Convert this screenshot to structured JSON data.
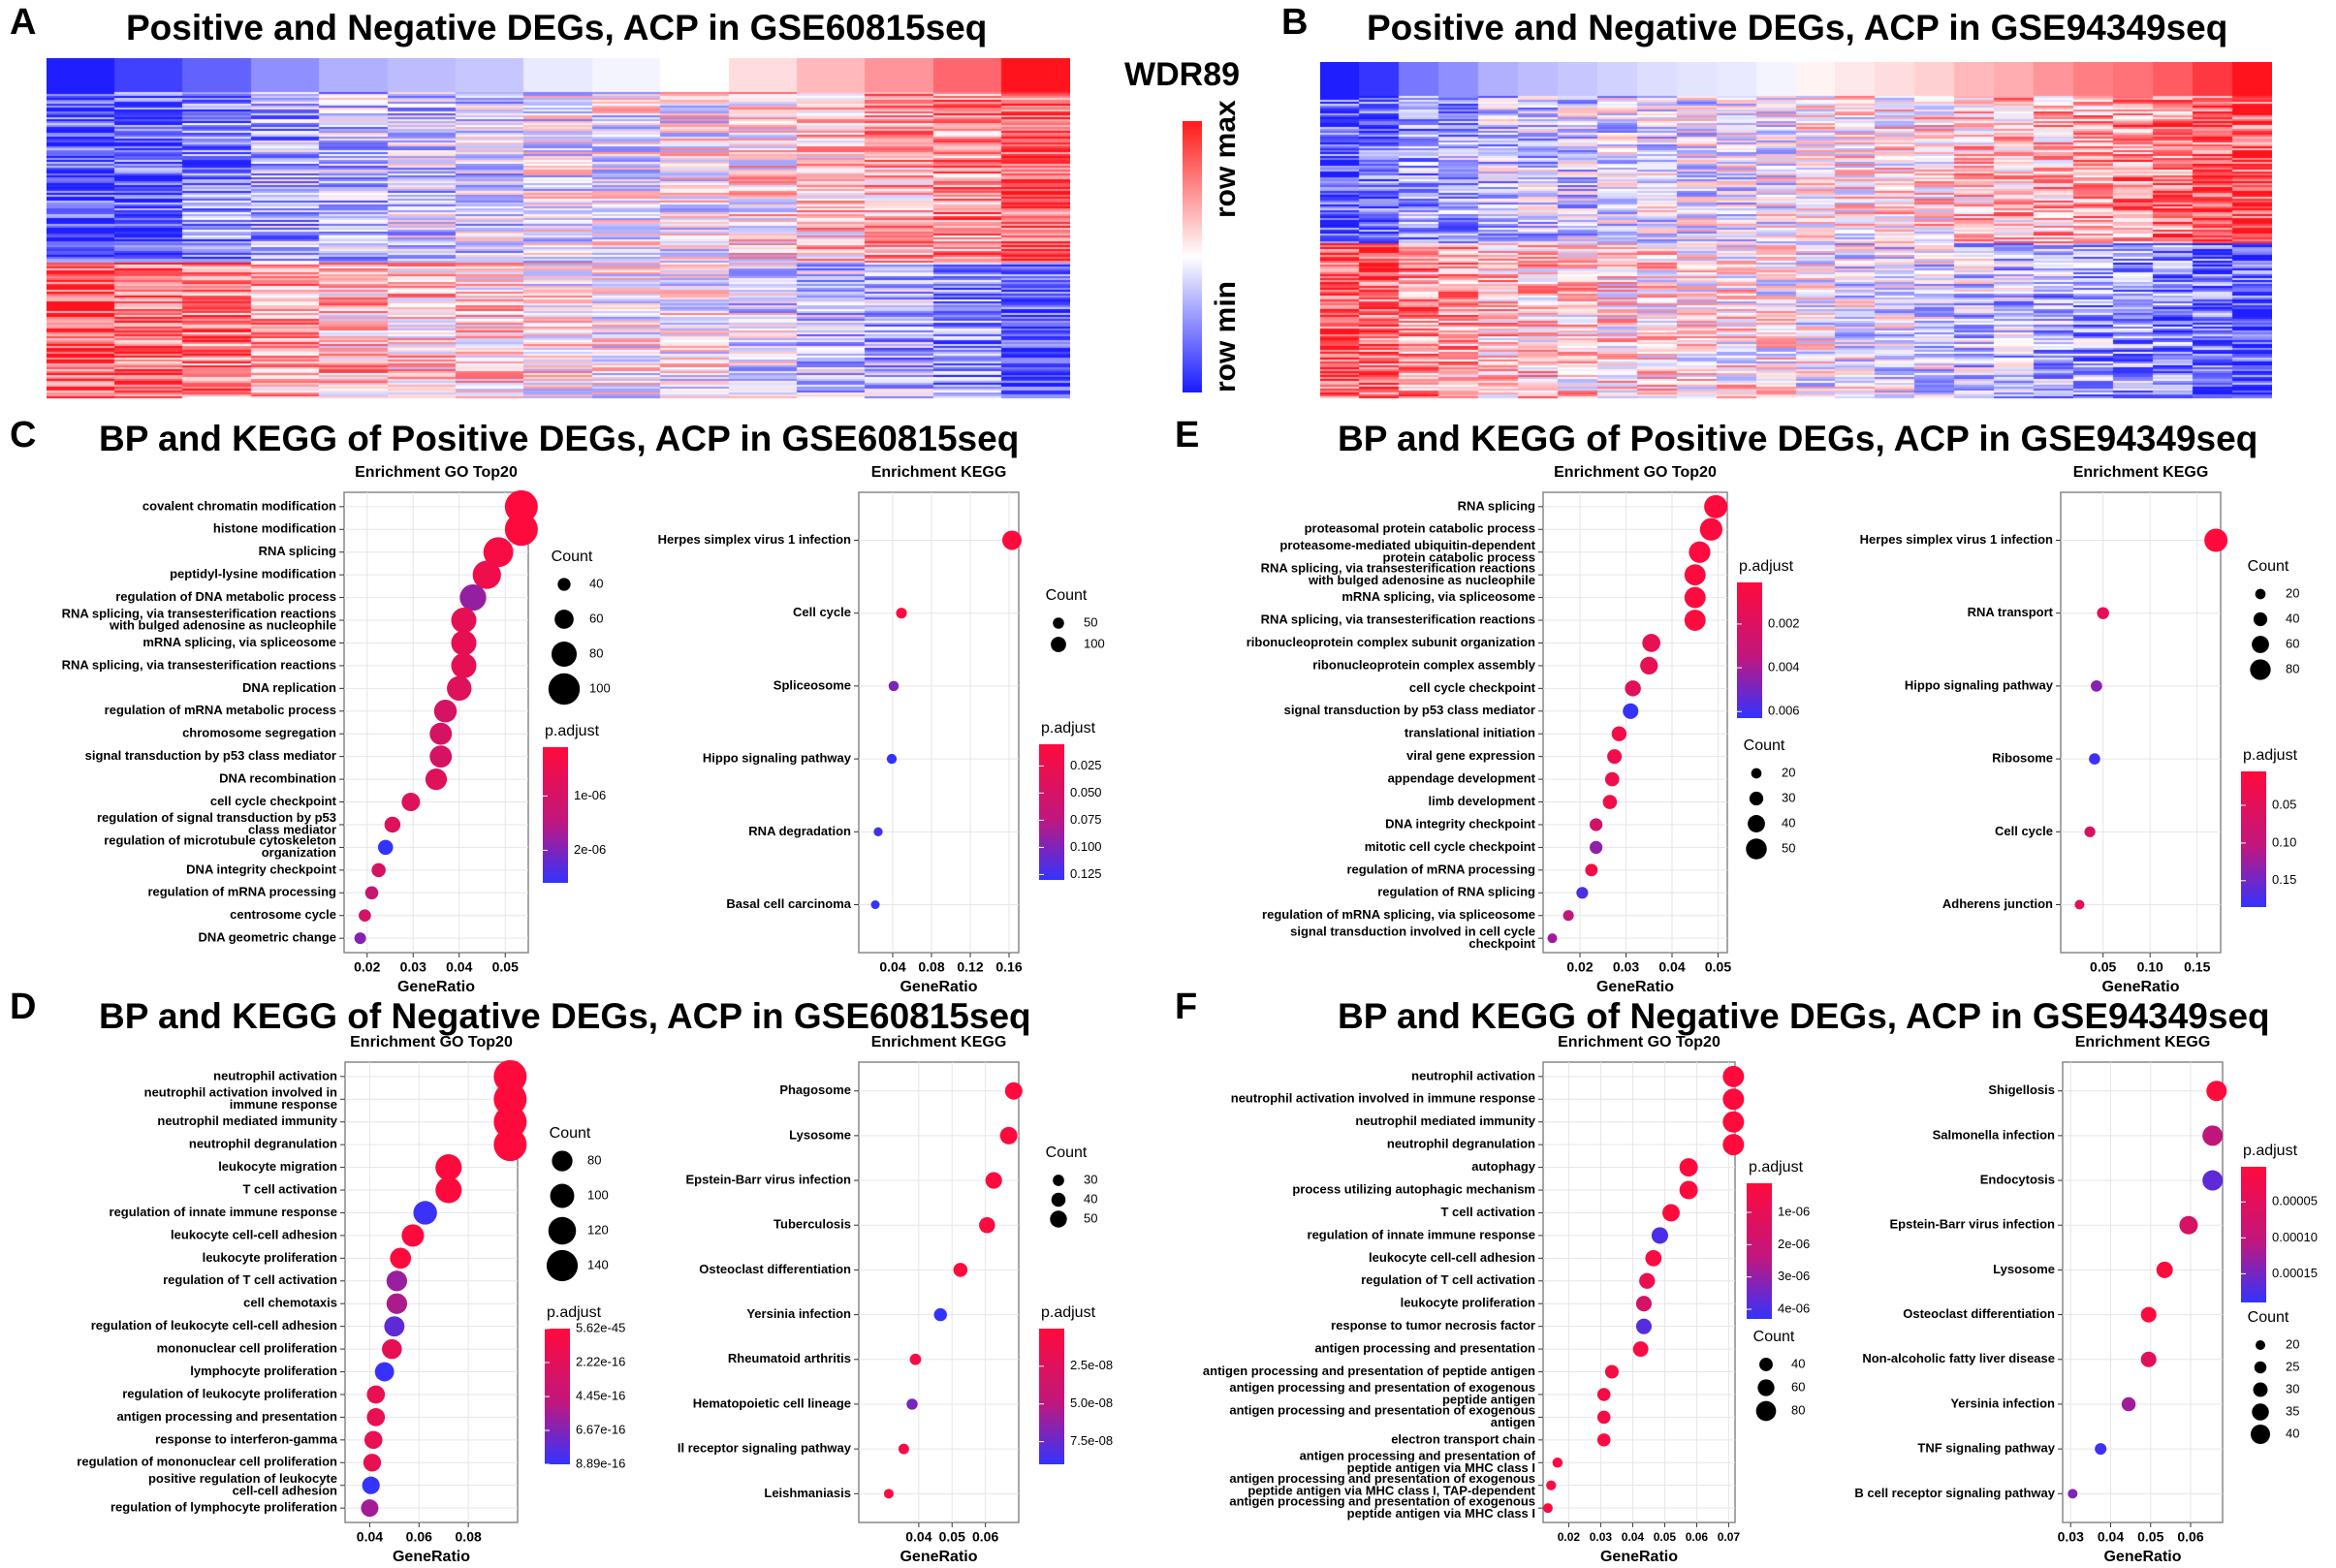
{
  "colors": {
    "low": "#2b2bff",
    "mid": "#ffffff",
    "high": "#ff0a14",
    "adj_low": "#ff0a3c",
    "adj_high": "#3333ff",
    "grid_bg": "#ffffff",
    "grid_line": "#e6e6e6",
    "frame": "#888888"
  },
  "panel_letters": [
    "A",
    "B",
    "C",
    "D",
    "E",
    "F"
  ],
  "heatmaps": [
    {
      "title": "Positive and Negative DEGs, ACP in GSE60815seq",
      "columns": 15,
      "seed": 7,
      "split": 0.56,
      "header_gradient": [
        -1,
        -0.85,
        -0.7,
        -0.5,
        -0.35,
        -0.3,
        -0.25,
        -0.1,
        -0.05,
        0.0,
        0.15,
        0.3,
        0.45,
        0.65,
        1.0
      ]
    },
    {
      "title": "Positive and Negative DEGs, ACP in GSE94349seq",
      "columns": 24,
      "seed": 19,
      "split": 0.49,
      "header_gradient": [
        -1,
        -0.9,
        -0.6,
        -0.5,
        -0.35,
        -0.3,
        -0.25,
        -0.2,
        -0.15,
        -0.12,
        -0.1,
        -0.05,
        0.05,
        0.1,
        0.15,
        0.2,
        0.3,
        0.35,
        0.45,
        0.55,
        0.6,
        0.7,
        0.85,
        1.0
      ]
    }
  ],
  "heatmap_legend": {
    "gene": "WDR89",
    "max_label": "row max",
    "min_label": "row min"
  },
  "section_titles": {
    "C": "BP and KEGG of Positive DEGs, ACP in GSE60815seq",
    "D": "BP and KEGG of Negative DEGs, ACP in GSE60815seq",
    "E": "BP and KEGG of Positive DEGs, ACP in GSE94349seq",
    "F": "BP and KEGG of Negative DEGs, ACP in GSE94349seq"
  },
  "chart_data": [
    {
      "id": "C-go",
      "type": "scatter",
      "title": "Enrichment GO Top20",
      "xlabel": "GeneRatio",
      "xlim": [
        0.015,
        0.055
      ],
      "xticks": [
        "0.02",
        "0.03",
        "0.04",
        "0.05"
      ],
      "xtick_values": [
        0.02,
        0.03,
        0.04,
        0.05
      ],
      "terms": [
        "covalent chromatin modification",
        "histone modification",
        "RNA splicing",
        "peptidyl-lysine modification",
        "regulation of DNA metabolic process",
        "RNA splicing, via transesterification reactions\nwith bulged adenosine as nucleophile",
        "mRNA splicing, via spliceosome",
        "RNA splicing, via transesterification reactions",
        "DNA replication",
        "regulation of mRNA metabolic process",
        "chromosome segregation",
        "signal transduction by p53 class mediator",
        "DNA recombination",
        "cell cycle checkpoint",
        "regulation of signal transduction by p53\nclass mediator",
        "regulation of microtubule cytoskeleton\norganization",
        "DNA integrity checkpoint",
        "regulation of mRNA processing",
        "centrosome cycle",
        "DNA geometric change"
      ],
      "gene_ratio": [
        0.0535,
        0.0535,
        0.0485,
        0.046,
        0.043,
        0.041,
        0.041,
        0.041,
        0.04,
        0.037,
        0.036,
        0.036,
        0.035,
        0.0295,
        0.0255,
        0.024,
        0.0225,
        0.021,
        0.0195,
        0.0185
      ],
      "count": [
        105,
        105,
        95,
        90,
        84,
        80,
        80,
        80,
        78,
        72,
        70,
        70,
        68,
        58,
        50,
        47,
        44,
        41,
        38,
        36
      ],
      "p_adjust": [
        1e-07,
        1e-07,
        2e-07,
        3e-07,
        1.4e-06,
        4e-07,
        4e-07,
        4e-07,
        5e-07,
        6e-07,
        6e-07,
        6e-07,
        5e-07,
        5e-07,
        5e-07,
        2.6e-06,
        6e-07,
        8e-07,
        6e-07,
        1.6e-06
      ],
      "size_legend": {
        "title": "Count",
        "labels": [
          "40",
          "60",
          "80",
          "100"
        ],
        "values": [
          40,
          60,
          80,
          100
        ]
      },
      "color_legend": {
        "title": "p.adjust",
        "labels": [
          "1e-06",
          "2e-06"
        ],
        "values": [
          1e-06,
          2e-06
        ],
        "range": [
          1e-07,
          2.6e-06
        ]
      }
    },
    {
      "id": "C-kegg",
      "type": "scatter",
      "title": "Enrichment KEGG",
      "xlabel": "GeneRatio",
      "xlim": [
        0.005,
        0.17
      ],
      "xticks": [
        "0.04",
        "0.08",
        "0.12",
        "0.16"
      ],
      "xtick_values": [
        0.04,
        0.08,
        0.12,
        0.16
      ],
      "terms": [
        "Herpes simplex virus 1 infection",
        "Cell cycle",
        "Spliceosome",
        "Hippo signaling pathway",
        "RNA degradation",
        "Basal cell carcinoma"
      ],
      "gene_ratio": [
        0.163,
        0.049,
        0.041,
        0.039,
        0.025,
        0.022
      ],
      "count": [
        150,
        45,
        38,
        36,
        23,
        20
      ],
      "p_adjust": [
        0.005,
        0.008,
        0.085,
        0.13,
        0.12,
        0.13
      ],
      "size_legend": {
        "title": "Count",
        "labels": [
          "50",
          "100"
        ],
        "values": [
          50,
          100
        ]
      },
      "color_legend": {
        "title": "p.adjust",
        "labels": [
          "0.025",
          "0.050",
          "0.075",
          "0.100",
          "0.125"
        ],
        "values": [
          0.025,
          0.05,
          0.075,
          0.1,
          0.125
        ],
        "range": [
          0.005,
          0.13
        ]
      }
    },
    {
      "id": "D-go",
      "type": "scatter",
      "title": "Enrichment GO Top20",
      "xlabel": "GeneRatio",
      "xlim": [
        0.03,
        0.1
      ],
      "xticks": [
        "0.04",
        "0.06",
        "0.08"
      ],
      "xtick_values": [
        0.04,
        0.06,
        0.08
      ],
      "terms": [
        "neutrophil activation",
        "neutrophil activation involved in\nimmune response",
        "neutrophil mediated immunity",
        "neutrophil degranulation",
        "leukocyte migration",
        "T cell activation",
        "regulation of innate immune response",
        "leukocyte cell-cell adhesion",
        "leukocyte proliferation",
        "regulation of T cell activation",
        "cell chemotaxis",
        "regulation of leukocyte cell-cell adhesion",
        "mononuclear cell proliferation",
        "lymphocyte proliferation",
        "regulation of leukocyte proliferation",
        "antigen processing and presentation",
        "response to interferon-gamma",
        "regulation of mononuclear cell proliferation",
        "positive regulation of leukocyte\ncell-cell adhesion",
        "regulation of lymphocyte proliferation"
      ],
      "gene_ratio": [
        0.097,
        0.097,
        0.097,
        0.097,
        0.072,
        0.072,
        0.0625,
        0.0575,
        0.0525,
        0.051,
        0.051,
        0.05,
        0.049,
        0.046,
        0.0425,
        0.0425,
        0.0415,
        0.041,
        0.0405,
        0.04
      ],
      "count": [
        150,
        150,
        150,
        150,
        112,
        112,
        97,
        90,
        82,
        80,
        80,
        78,
        76,
        72,
        66,
        66,
        65,
        64,
        63,
        62
      ],
      "p_adjust": [
        5e-45,
        5e-45,
        5e-45,
        5e-45,
        5e-45,
        5e-45,
        8.5e-16,
        5e-45,
        5e-45,
        4.5e-16,
        3.6e-16,
        7e-16,
        1.1e-16,
        8.7e-16,
        1e-16,
        1e-16,
        1e-16,
        1e-16,
        8.8e-16,
        4e-16
      ],
      "size_legend": {
        "title": "Count",
        "labels": [
          "80",
          "100",
          "120",
          "140"
        ],
        "values": [
          80,
          100,
          120,
          140
        ]
      },
      "color_legend": {
        "title": "p.adjust",
        "labels": [
          "5.62e-45",
          "2.22e-16",
          "4.45e-16",
          "6.67e-16",
          "8.89e-16"
        ],
        "values": [
          5.62e-45,
          2.22e-16,
          4.45e-16,
          6.67e-16,
          8.89e-16
        ],
        "range": [
          5.62e-45,
          8.89e-16
        ]
      }
    },
    {
      "id": "D-kegg",
      "type": "scatter",
      "title": "Enrichment KEGG",
      "xlabel": "GeneRatio",
      "xlim": [
        0.022,
        0.07
      ],
      "xticks": [
        "0.04",
        "0.05",
        "0.06"
      ],
      "xtick_values": [
        0.04,
        0.05,
        0.06
      ],
      "terms": [
        "Phagosome",
        "Lysosome",
        "Epstein-Barr virus infection",
        "Tuberculosis",
        "Osteoclast differentiation",
        "Yersinia infection",
        "Rheumatoid arthritis",
        "Hematopoietic cell lineage",
        "Il receptor signaling pathway",
        "Leishmaniasis"
      ],
      "gene_ratio": [
        0.0685,
        0.067,
        0.0625,
        0.0605,
        0.0525,
        0.0465,
        0.039,
        0.038,
        0.0355,
        0.031
      ],
      "count": [
        52,
        52,
        49,
        47,
        40,
        36,
        30,
        29,
        27,
        24
      ],
      "p_adjust": [
        5e-10,
        5e-10,
        1e-09,
        1e-09,
        5e-10,
        9e-08,
        4e-09,
        6e-08,
        4e-09,
        2e-09
      ],
      "size_legend": {
        "title": "Count",
        "labels": [
          "30",
          "40",
          "50"
        ],
        "values": [
          30,
          40,
          50
        ]
      },
      "color_legend": {
        "title": "p.adjust",
        "labels": [
          "2.5e-08",
          "5.0e-08",
          "7.5e-08"
        ],
        "values": [
          2.5e-08,
          5e-08,
          7.5e-08
        ],
        "range": [
          1e-10,
          9e-08
        ]
      }
    },
    {
      "id": "E-go",
      "type": "scatter",
      "title": "Enrichment GO Top20",
      "xlabel": "GeneRatio",
      "xlim": [
        0.012,
        0.052
      ],
      "xticks": [
        "0.02",
        "0.03",
        "0.04",
        "0.05"
      ],
      "xtick_values": [
        0.02,
        0.03,
        0.04,
        0.05
      ],
      "terms": [
        "RNA splicing",
        "proteasomal protein catabolic process",
        "proteasome-mediated ubiquitin-dependent\nprotein catabolic process",
        "RNA splicing, via transesterification reactions\nwith bulged adenosine as nucleophile",
        "mRNA splicing, via spliceosome",
        "RNA splicing, via transesterification reactions",
        "ribonucleoprotein complex subunit organization",
        "ribonucleoprotein complex assembly",
        "cell cycle checkpoint",
        "signal transduction by p53 class mediator",
        "translational initiation",
        "viral gene expression",
        "appendage development",
        "limb development",
        "DNA integrity checkpoint",
        "mitotic cell cycle checkpoint",
        "regulation of mRNA processing",
        "regulation of RNA splicing",
        "regulation of mRNA splicing, via spliceosome",
        "signal transduction involved in cell cycle\ncheckpoint"
      ],
      "gene_ratio": [
        0.0495,
        0.0485,
        0.046,
        0.045,
        0.045,
        0.045,
        0.0355,
        0.035,
        0.0315,
        0.031,
        0.0285,
        0.0275,
        0.027,
        0.0265,
        0.0235,
        0.0235,
        0.0225,
        0.0205,
        0.0175,
        0.014
      ],
      "count": [
        57,
        55,
        52,
        51,
        51,
        51,
        42,
        41,
        36,
        35,
        33,
        32,
        31,
        31,
        27,
        27,
        26,
        24,
        21,
        18
      ],
      "p_adjust": [
        0.0001,
        0.0002,
        0.0002,
        0.0002,
        0.0002,
        0.0002,
        0.0008,
        0.0008,
        0.001,
        0.0062,
        0.0005,
        0.0006,
        0.0006,
        0.0005,
        0.0015,
        0.0035,
        0.0005,
        0.0055,
        0.002,
        0.003
      ],
      "size_legend": {
        "title": "Count",
        "labels": [
          "20",
          "30",
          "40",
          "50"
        ],
        "values": [
          20,
          30,
          40,
          50
        ]
      },
      "color_legend": {
        "title": "p.adjust",
        "labels": [
          "0.002",
          "0.004",
          "0.006"
        ],
        "values": [
          0.002,
          0.004,
          0.006
        ],
        "range": [
          0.0001,
          0.0063
        ]
      }
    },
    {
      "id": "E-kegg",
      "type": "scatter",
      "title": "Enrichment KEGG",
      "xlabel": "GeneRatio",
      "xlim": [
        0.005,
        0.175
      ],
      "xticks": [
        "0.05",
        "0.10",
        "0.15"
      ],
      "xtick_values": [
        0.05,
        0.1,
        0.15
      ],
      "terms": [
        "Herpes simplex virus 1 infection",
        "RNA transport",
        "Hippo signaling pathway",
        "Ribosome",
        "Cell cycle",
        "Adherens junction"
      ],
      "gene_ratio": [
        0.17,
        0.05,
        0.043,
        0.041,
        0.036,
        0.025
      ],
      "count": [
        95,
        30,
        26,
        25,
        23,
        16
      ],
      "p_adjust": [
        0.005,
        0.03,
        0.11,
        0.175,
        0.04,
        0.03
      ],
      "size_legend": {
        "title": "Count",
        "labels": [
          "20",
          "40",
          "60",
          "80"
        ],
        "values": [
          20,
          40,
          60,
          80
        ]
      },
      "color_legend": {
        "title": "p.adjust",
        "labels": [
          "0.05",
          "0.10",
          "0.15"
        ],
        "values": [
          0.05,
          0.1,
          0.15
        ],
        "range": [
          0.005,
          0.185
        ]
      }
    },
    {
      "id": "F-go",
      "type": "scatter",
      "title": "Enrichment GO Top20",
      "xlabel": "GeneRatio",
      "xlim": [
        0.012,
        0.072
      ],
      "xticks": [
        "0.02",
        "0.03",
        "0.04",
        "0.05",
        "0.06",
        "0.07"
      ],
      "xtick_values": [
        0.02,
        0.03,
        0.04,
        0.05,
        0.06,
        0.07
      ],
      "terms": [
        "neutrophil activation",
        "neutrophil activation involved in immune response",
        "neutrophil mediated immunity",
        "neutrophil degranulation",
        "autophagy",
        "process utilizing autophagic mechanism",
        "T cell activation",
        "regulation of innate immune response",
        "leukocyte cell-cell adhesion",
        "regulation of T cell activation",
        "leukocyte proliferation",
        "response to tumor necrosis factor",
        "antigen processing and presentation",
        "antigen processing and presentation of peptide antigen",
        "antigen processing and presentation of exogenous\npeptide antigen",
        "antigen processing and presentation of exogenous\nantigen",
        "electron transport chain",
        "antigen processing and presentation of\npeptide antigen via MHC class I",
        "antigen processing and presentation of exogenous\npeptide antigen via MHC class I, TAP-dependent",
        "antigen processing and presentation of exogenous\npeptide antigen via MHC class I"
      ],
      "gene_ratio": [
        0.0715,
        0.0715,
        0.0715,
        0.0715,
        0.0575,
        0.0575,
        0.052,
        0.0485,
        0.0465,
        0.0445,
        0.0435,
        0.0435,
        0.0425,
        0.0335,
        0.031,
        0.031,
        0.031,
        0.0165,
        0.0145,
        0.0135
      ],
      "count": [
        88,
        88,
        88,
        88,
        70,
        70,
        64,
        59,
        57,
        54,
        53,
        53,
        52,
        41,
        38,
        38,
        38,
        20,
        18,
        17
      ],
      "p_adjust": [
        1e-07,
        1e-07,
        1e-07,
        1e-07,
        1e-07,
        1e-07,
        1e-07,
        3.8e-06,
        2e-07,
        5e-07,
        1e-06,
        3.6e-06,
        2e-07,
        3e-07,
        3e-07,
        3e-07,
        2e-07,
        2e-07,
        2e-07,
        2e-07
      ],
      "size_legend": {
        "title": "Count",
        "labels": [
          "40",
          "60",
          "80"
        ],
        "values": [
          40,
          60,
          80
        ]
      },
      "color_legend": {
        "title": "p.adjust",
        "labels": [
          "1e-06",
          "2e-06",
          "3e-06",
          "4e-06"
        ],
        "values": [
          1e-06,
          2e-06,
          3e-06,
          4e-06
        ],
        "range": [
          1e-07,
          4.3e-06
        ]
      }
    },
    {
      "id": "F-kegg",
      "type": "scatter",
      "title": "Enrichment KEGG",
      "xlabel": "GeneRatio",
      "xlim": [
        0.028,
        0.068
      ],
      "xticks": [
        "0.03",
        "0.04",
        "0.05",
        "0.06"
      ],
      "xtick_values": [
        0.03,
        0.04,
        0.05,
        0.06
      ],
      "terms": [
        "Shigellosis",
        "Salmonella infection",
        "Endocytosis",
        "Epstein-Barr virus infection",
        "Lysosome",
        "Osteoclast differentiation",
        "Non-alcoholic fatty liver disease",
        "Yersinia infection",
        "TNF signaling pathway",
        "B cell receptor signaling pathway"
      ],
      "gene_ratio": [
        0.0665,
        0.0655,
        0.0655,
        0.0595,
        0.0535,
        0.0495,
        0.0495,
        0.0445,
        0.0375,
        0.0305
      ],
      "count": [
        42,
        42,
        42,
        38,
        34,
        32,
        32,
        29,
        24,
        20
      ],
      "p_adjust": [
        2e-06,
        6e-05,
        0.00015,
        4e-05,
        2e-06,
        2e-06,
        3e-05,
        9e-05,
        0.00018,
        0.00012
      ],
      "size_legend": {
        "title": "Count",
        "labels": [
          "20",
          "25",
          "30",
          "35",
          "40"
        ],
        "values": [
          20,
          25,
          30,
          35,
          40
        ]
      },
      "color_legend": {
        "title": "p.adjust",
        "labels": [
          "0.00005",
          "0.00010",
          "0.00015"
        ],
        "values": [
          5e-05,
          0.0001,
          0.00015
        ],
        "range": [
          1e-06,
          0.00019
        ]
      }
    }
  ]
}
